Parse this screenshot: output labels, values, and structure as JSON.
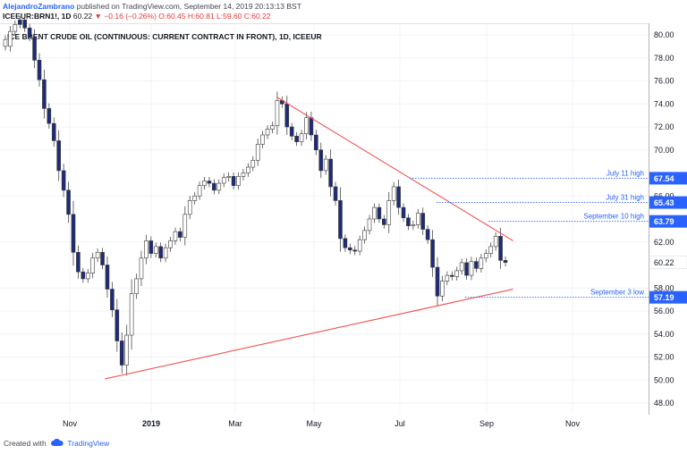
{
  "header": {
    "author": "AlejandroZambrano",
    "published_text": "published on TradingView.com, September 14, 2019 20:13:13 BST",
    "symbol": "ICEEUR:BRN1!, 1D",
    "last": "60.22",
    "change": "▼ −0.16 (−0.26%)",
    "ohlc": "O:60.45 H:60.81 L:59.60 C:60.22"
  },
  "footer": {
    "created_with": "Created with",
    "brand": "TradingView",
    "logo_icon": "tradingview-cloud-icon"
  },
  "chart_data": {
    "type": "candlestick",
    "title": "ICE BRENT CRUDE OIL (CONTINUOUS: CURRENT CONTRACT IN FRONT), 1D, ICEEUR",
    "y_ticks": [
      "80.00",
      "78.00",
      "76.00",
      "74.00",
      "72.00",
      "70.00",
      "66.00",
      "62.00",
      "58.00",
      "56.00",
      "54.00",
      "52.00",
      "50.00",
      "48.00"
    ],
    "x_ticks": [
      "Nov",
      "2019",
      "Mar",
      "May",
      "Jul",
      "Sep",
      "Nov"
    ],
    "ylim": [
      47,
      81.5
    ],
    "grid": true,
    "colors": {
      "up": "#ffffff",
      "down": "#1e2a7a",
      "trendline": "#ef5350",
      "level": "#2962ff",
      "price_label": "#2962ff",
      "current_label": "#ffffff"
    },
    "candles_close": [
      79.0,
      80.3,
      80.9,
      81.3,
      80.6,
      79.8,
      77.8,
      76.1,
      73.6,
      72.3,
      70.8,
      68.2,
      66.5,
      64.4,
      61.1,
      59.4,
      58.8,
      59.3,
      60.6,
      61.1,
      60.0,
      57.9,
      56.1,
      53.4,
      51.3,
      53.9,
      57.5,
      58.8,
      60.6,
      62.1,
      61.0,
      61.6,
      60.6,
      61.5,
      62.1,
      62.9,
      62.4,
      64.4,
      65.6,
      66.0,
      66.9,
      67.3,
      67.1,
      66.5,
      67.1,
      67.6,
      67.7,
      66.9,
      67.7,
      68.0,
      68.5,
      69.1,
      70.5,
      71.3,
      71.8,
      72.1,
      74.3,
      74.0,
      72.0,
      71.2,
      70.7,
      71.4,
      72.8,
      71.3,
      70.0,
      68.2,
      69.2,
      66.8,
      65.6,
      62.3,
      61.5,
      61.3,
      61.2,
      62.2,
      63.0,
      64.0,
      65.0,
      64.0,
      63.5,
      65.6,
      66.8,
      65.0,
      64.1,
      63.4,
      63.5,
      64.5,
      63.1,
      62.2,
      59.8,
      57.3,
      58.6,
      59.1,
      59.0,
      59.5,
      60.2,
      59.1,
      60.3,
      59.7,
      60.6,
      61.0,
      61.6,
      62.5,
      60.4,
      60.22
    ],
    "candles_dir": [
      "up",
      "up",
      "up",
      "dn",
      "dn",
      "dn",
      "dn",
      "dn",
      "dn",
      "dn",
      "dn",
      "dn",
      "dn",
      "dn",
      "dn",
      "dn",
      "dn",
      "up",
      "up",
      "up",
      "dn",
      "dn",
      "dn",
      "dn",
      "dn",
      "up",
      "up",
      "up",
      "up",
      "up",
      "dn",
      "up",
      "dn",
      "up",
      "up",
      "up",
      "dn",
      "up",
      "up",
      "up",
      "up",
      "up",
      "dn",
      "dn",
      "up",
      "up",
      "up",
      "dn",
      "up",
      "up",
      "up",
      "up",
      "up",
      "up",
      "up",
      "up",
      "up",
      "dn",
      "dn",
      "dn",
      "dn",
      "up",
      "up",
      "dn",
      "dn",
      "dn",
      "up",
      "dn",
      "dn",
      "dn",
      "dn",
      "dn",
      "dn",
      "up",
      "up",
      "up",
      "up",
      "dn",
      "dn",
      "up",
      "up",
      "dn",
      "dn",
      "dn",
      "up",
      "up",
      "dn",
      "dn",
      "dn",
      "dn",
      "up",
      "up",
      "dn",
      "up",
      "up",
      "dn",
      "up",
      "dn",
      "up",
      "up",
      "up",
      "up",
      "dn",
      "dn"
    ],
    "trendlines": [
      {
        "from": [
          "2018-12-24",
          50.1
        ],
        "to": [
          "2019-10-10",
          57.9
        ]
      },
      {
        "from": [
          "2019-04-25",
          74.6
        ],
        "to": [
          "2019-10-10",
          62.1
        ]
      }
    ],
    "levels": [
      {
        "label": "July 11 high",
        "value": "67.54"
      },
      {
        "label": "July 31 high",
        "value": "65.43"
      },
      {
        "label": "September 10 high",
        "value": "63.79"
      },
      {
        "label": "September 3 low",
        "value": "57.19"
      }
    ],
    "current_price": "60.22"
  }
}
